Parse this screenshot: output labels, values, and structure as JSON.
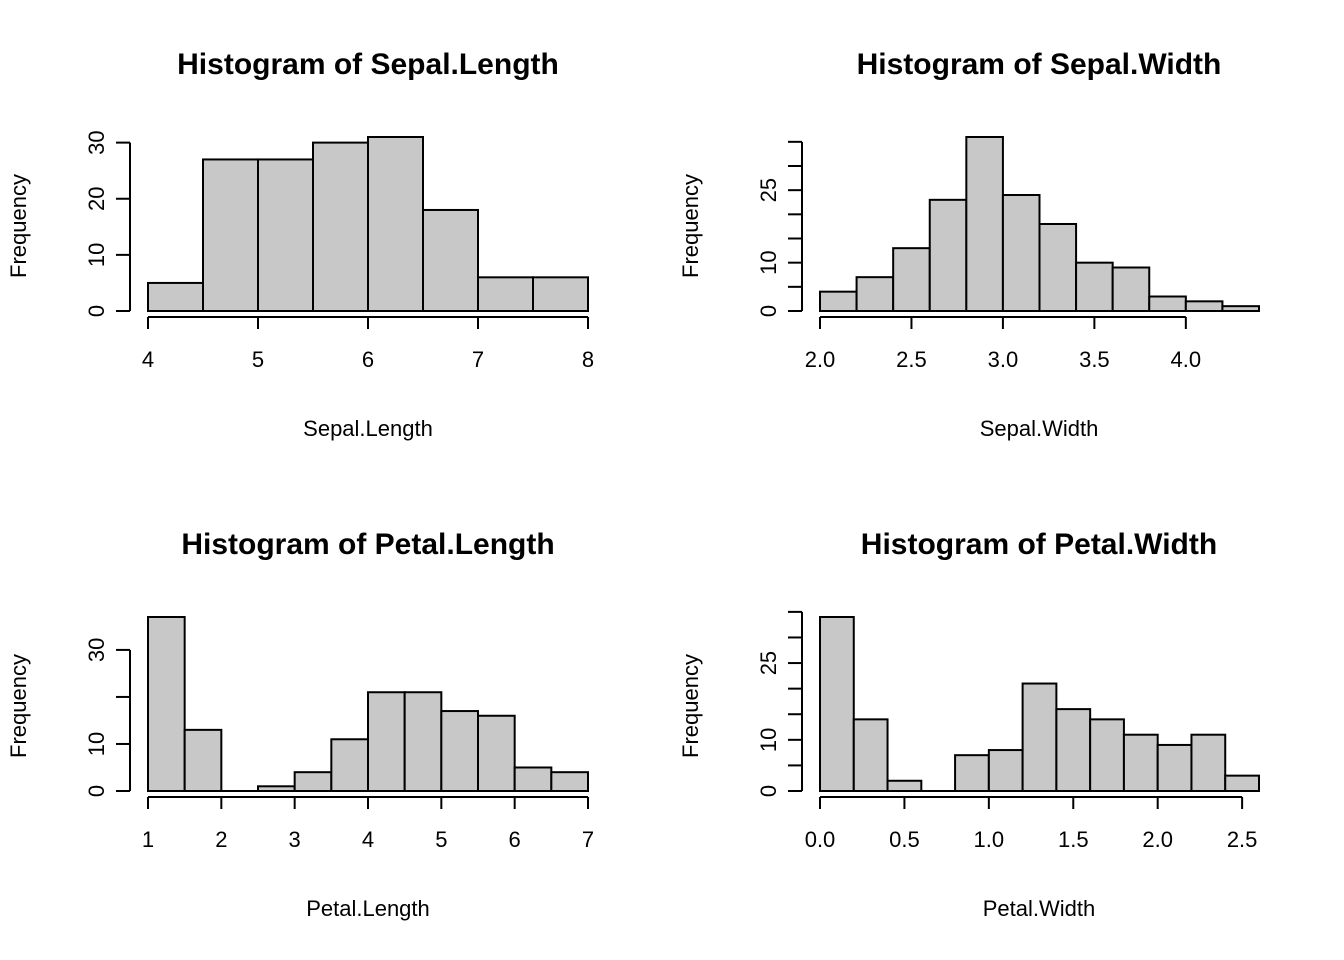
{
  "colors": {
    "bar_fill": "#c8c8c8",
    "stroke": "#000000",
    "background": "#ffffff"
  },
  "chart_data": [
    {
      "type": "bar",
      "title": "Histogram of Sepal.Length",
      "xlabel": "Sepal.Length",
      "ylabel": "Frequency",
      "breaks": [
        4,
        4.5,
        5,
        5.5,
        6,
        6.5,
        7,
        7.5,
        8
      ],
      "values": [
        5,
        27,
        27,
        30,
        31,
        18,
        6,
        6
      ],
      "xlim": [
        4,
        8
      ],
      "ylim": [
        0,
        31
      ],
      "xticks": [
        4,
        5,
        6,
        7,
        8
      ],
      "xtick_labels": [
        "4",
        "5",
        "6",
        "7",
        "8"
      ],
      "yticks": [
        0,
        10,
        20,
        30
      ],
      "ytick_labels": [
        "0",
        "10",
        "20",
        "30"
      ],
      "grid": false
    },
    {
      "type": "bar",
      "title": "Histogram of Sepal.Width",
      "xlabel": "Sepal.Width",
      "ylabel": "Frequency",
      "breaks": [
        2.0,
        2.2,
        2.4,
        2.6,
        2.8,
        3.0,
        3.2,
        3.4,
        3.6,
        3.8,
        4.0,
        4.2,
        4.4
      ],
      "values": [
        4,
        7,
        13,
        23,
        36,
        24,
        18,
        10,
        9,
        3,
        2,
        1
      ],
      "xlim": [
        2.0,
        4.4
      ],
      "ylim": [
        0,
        36
      ],
      "xticks": [
        2.0,
        2.5,
        3.0,
        3.5,
        4.0
      ],
      "xtick_labels": [
        "2.0",
        "2.5",
        "3.0",
        "3.5",
        "4.0"
      ],
      "yticks": [
        0,
        5,
        10,
        15,
        20,
        25,
        30,
        35
      ],
      "ytick_labels": [
        "0",
        "",
        "10",
        "",
        "",
        "25",
        "",
        ""
      ],
      "grid": false
    },
    {
      "type": "bar",
      "title": "Histogram of Petal.Length",
      "xlabel": "Petal.Length",
      "ylabel": "Frequency",
      "breaks": [
        1,
        1.5,
        2,
        2.5,
        3,
        3.5,
        4,
        4.5,
        5,
        5.5,
        6,
        6.5,
        7
      ],
      "values": [
        37,
        13,
        0,
        1,
        4,
        11,
        21,
        21,
        17,
        16,
        5,
        4
      ],
      "xlim": [
        1,
        7
      ],
      "ylim": [
        0,
        37
      ],
      "xticks": [
        1,
        2,
        3,
        4,
        5,
        6,
        7
      ],
      "xtick_labels": [
        "1",
        "2",
        "3",
        "4",
        "5",
        "6",
        "7"
      ],
      "yticks": [
        0,
        10,
        20,
        30
      ],
      "ytick_labels": [
        "0",
        "10",
        "",
        "30"
      ],
      "grid": false
    },
    {
      "type": "bar",
      "title": "Histogram of Petal.Width",
      "xlabel": "Petal.Width",
      "ylabel": "Frequency",
      "breaks": [
        0.0,
        0.2,
        0.4,
        0.6,
        0.8,
        1.0,
        1.2,
        1.4,
        1.6,
        1.8,
        2.0,
        2.2,
        2.4,
        2.6
      ],
      "values": [
        34,
        14,
        2,
        0,
        7,
        8,
        21,
        16,
        14,
        11,
        9,
        11,
        3
      ],
      "xlim": [
        0.0,
        2.6
      ],
      "ylim": [
        0,
        34
      ],
      "xticks": [
        0.0,
        0.5,
        1.0,
        1.5,
        2.0,
        2.5
      ],
      "xtick_labels": [
        "0.0",
        "0.5",
        "1.0",
        "1.5",
        "2.0",
        "2.5"
      ],
      "yticks": [
        0,
        5,
        10,
        15,
        20,
        25,
        30,
        35
      ],
      "ytick_labels": [
        "0",
        "",
        "10",
        "",
        "",
        "25",
        "",
        ""
      ],
      "grid": false
    }
  ]
}
